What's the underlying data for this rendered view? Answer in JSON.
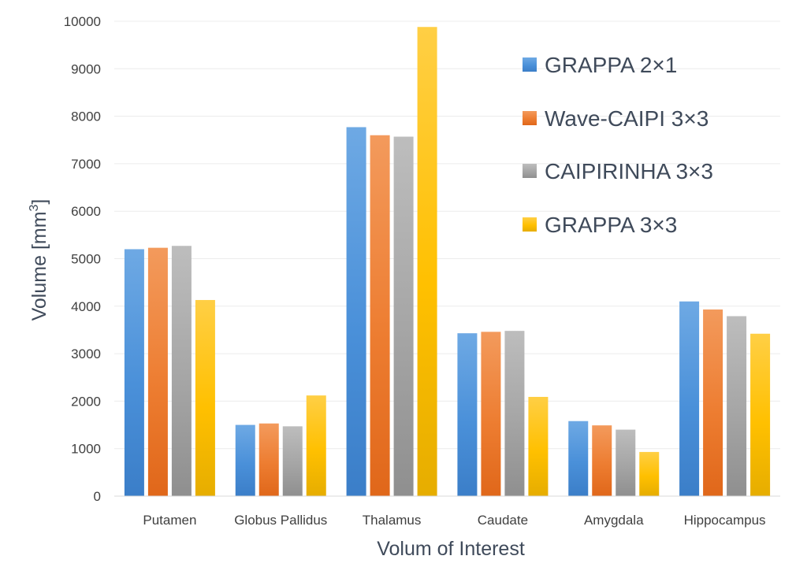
{
  "chart_data": {
    "type": "bar",
    "title": "",
    "xlabel": "Volum of Interest",
    "ylabel": "Volume [mm",
    "ylabel_superscript": "3",
    "ylabel_suffix": "]",
    "ylim": [
      0,
      10000
    ],
    "yticks": [
      0,
      1000,
      2000,
      3000,
      4000,
      5000,
      6000,
      7000,
      8000,
      9000,
      10000
    ],
    "grid": true,
    "legend_position": "top-right",
    "categories": [
      "Putamen",
      "Globus Pallidus",
      "Thalamus",
      "Caudate",
      "Amygdala",
      "Hippocampus"
    ],
    "series": [
      {
        "name": "GRAPPA 2×1",
        "color": "#4a90d9",
        "color_light": "#6ea9e4",
        "color_dark": "#3b7ec8",
        "values": [
          5200,
          1500,
          7770,
          3430,
          1580,
          4100
        ]
      },
      {
        "name": "Wave-CAIPI 3×3",
        "color": "#ed7d31",
        "color_light": "#f39a5c",
        "color_dark": "#e0671a",
        "values": [
          5230,
          1530,
          7600,
          3460,
          1490,
          3930
        ]
      },
      {
        "name": "CAIPIRINHA 3×3",
        "color": "#a5a5a5",
        "color_light": "#bdbdbd",
        "color_dark": "#8f8f8f",
        "values": [
          5270,
          1470,
          7570,
          3480,
          1400,
          3790
        ]
      },
      {
        "name": "GRAPPA 3×3",
        "color": "#ffc000",
        "color_light": "#ffcf45",
        "color_dark": "#e6ad00",
        "values": [
          4130,
          2120,
          9880,
          2090,
          930,
          3420
        ]
      }
    ]
  }
}
